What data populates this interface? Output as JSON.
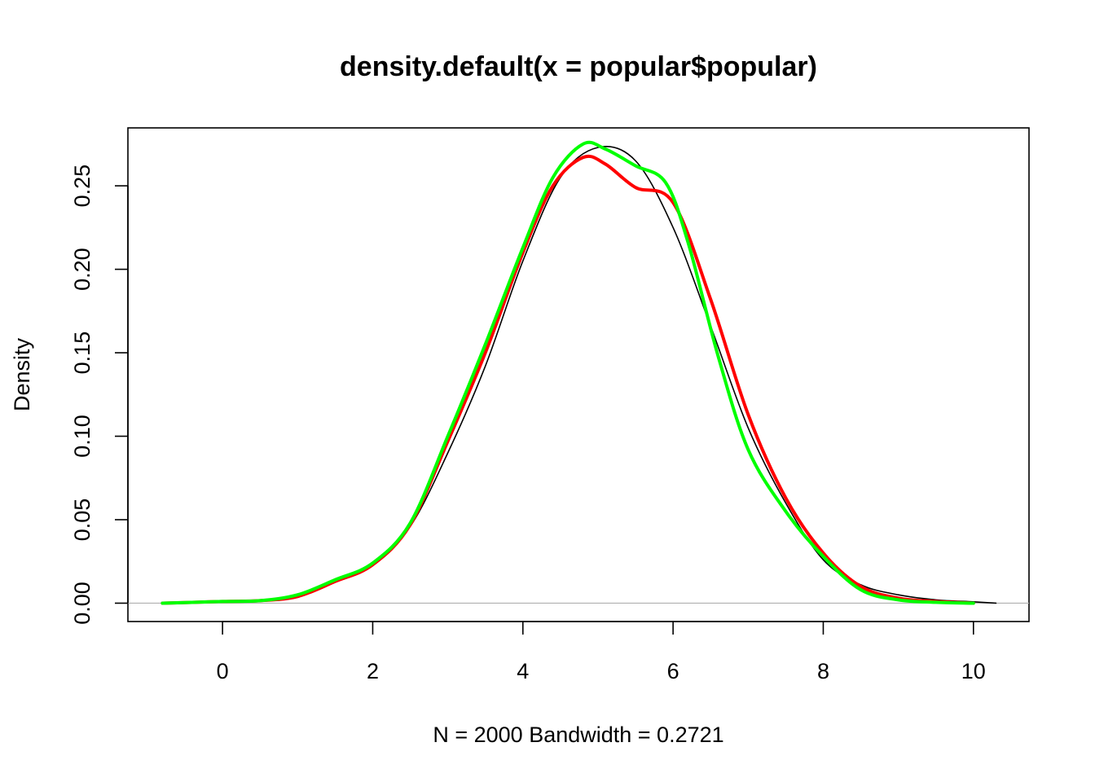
{
  "chart_data": {
    "type": "line",
    "title": "density.default(x = popular$popular)",
    "xlabel": "N = 2000   Bandwidth = 0.2721",
    "ylabel": "Density",
    "xlim": [
      -1.26,
      10.74
    ],
    "ylim": [
      -0.011,
      0.2847
    ],
    "x_ticks": [
      "0",
      "2",
      "4",
      "6",
      "8",
      "10"
    ],
    "y_ticks": [
      "0.00",
      "0.05",
      "0.10",
      "0.15",
      "0.20",
      "0.25"
    ],
    "grid": false,
    "baseline_y": 0,
    "series": [
      {
        "color": "#000000",
        "points": [
          [
            -0.8,
            0
          ],
          [
            0,
            0.001
          ],
          [
            0.5,
            0.0015
          ],
          [
            1,
            0.005
          ],
          [
            1.5,
            0.014
          ],
          [
            2,
            0.023
          ],
          [
            2.5,
            0.046
          ],
          [
            3,
            0.09
          ],
          [
            3.5,
            0.142
          ],
          [
            4,
            0.205
          ],
          [
            4.5,
            0.255
          ],
          [
            5,
            0.273
          ],
          [
            5.5,
            0.265
          ],
          [
            6,
            0.225
          ],
          [
            6.5,
            0.166
          ],
          [
            7,
            0.105
          ],
          [
            7.5,
            0.06
          ],
          [
            8,
            0.026
          ],
          [
            8.5,
            0.011
          ],
          [
            9,
            0.005
          ],
          [
            9.5,
            0.002
          ],
          [
            10,
            0.0008
          ],
          [
            10.3,
            0
          ]
        ]
      },
      {
        "color": "#ff0000",
        "points": [
          [
            -0.8,
            0
          ],
          [
            0,
            0.001
          ],
          [
            0.5,
            0.0015
          ],
          [
            1,
            0.004
          ],
          [
            1.5,
            0.013
          ],
          [
            2,
            0.023
          ],
          [
            2.5,
            0.047
          ],
          [
            3,
            0.097
          ],
          [
            3.5,
            0.15
          ],
          [
            4,
            0.21
          ],
          [
            4.4,
            0.25
          ],
          [
            4.8,
            0.267
          ],
          [
            5.1,
            0.263
          ],
          [
            5.5,
            0.249
          ],
          [
            6,
            0.24
          ],
          [
            6.5,
            0.182
          ],
          [
            7,
            0.113
          ],
          [
            7.5,
            0.063
          ],
          [
            8,
            0.03
          ],
          [
            8.5,
            0.01
          ],
          [
            9,
            0.003
          ],
          [
            9.5,
            0.001
          ],
          [
            10,
            0
          ]
        ]
      },
      {
        "color": "#00ff00",
        "points": [
          [
            -0.8,
            0
          ],
          [
            0,
            0.001
          ],
          [
            0.5,
            0.0015
          ],
          [
            1,
            0.005
          ],
          [
            1.5,
            0.014
          ],
          [
            2,
            0.024
          ],
          [
            2.5,
            0.048
          ],
          [
            3,
            0.1
          ],
          [
            3.5,
            0.155
          ],
          [
            4,
            0.213
          ],
          [
            4.4,
            0.255
          ],
          [
            4.8,
            0.275
          ],
          [
            5.1,
            0.272
          ],
          [
            5.5,
            0.262
          ],
          [
            5.9,
            0.252
          ],
          [
            6.2,
            0.216
          ],
          [
            6.6,
            0.148
          ],
          [
            7,
            0.092
          ],
          [
            7.5,
            0.055
          ],
          [
            8,
            0.028
          ],
          [
            8.5,
            0.008
          ],
          [
            9,
            0.002
          ],
          [
            9.5,
            0.0005
          ],
          [
            10,
            0
          ]
        ]
      }
    ]
  }
}
